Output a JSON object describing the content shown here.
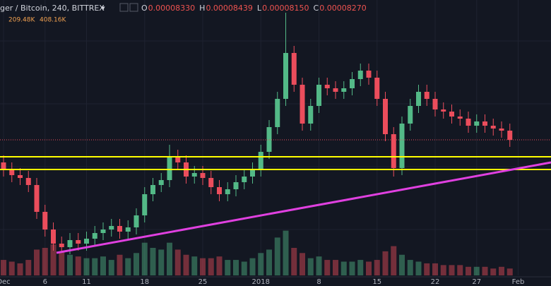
{
  "header": {
    "symbol": "ger / Bitcoin, 240, BITTREX",
    "ohlc": [
      {
        "key": "O",
        "value": "0.00008330"
      },
      {
        "key": "H",
        "value": "0.00008439"
      },
      {
        "key": "L",
        "value": "0.00008150"
      },
      {
        "key": "C",
        "value": "0.00008270"
      }
    ],
    "volume": [
      "209.48K",
      "408.16K"
    ]
  },
  "chart_data": {
    "type": "candlestick",
    "categories": [
      "Dec",
      null,
      null,
      null,
      null,
      "6",
      null,
      null,
      null,
      null,
      "11",
      null,
      null,
      null,
      null,
      null,
      null,
      "18",
      null,
      null,
      null,
      null,
      null,
      null,
      "25",
      null,
      null,
      null,
      null,
      null,
      null,
      "2018",
      null,
      null,
      null,
      null,
      null,
      null,
      "8",
      null,
      null,
      null,
      null,
      null,
      null,
      "15",
      null,
      null,
      null,
      null,
      null,
      null,
      "22",
      null,
      null,
      null,
      null,
      "27",
      null,
      null,
      null,
      null,
      "Feb"
    ],
    "open": [
      7.31e-05,
      7.01e-05,
      6.77e-05,
      6.65e-05,
      6.35e-05,
      5.21e-05,
      4.46e-05,
      3.86e-05,
      3.71e-05,
      4.01e-05,
      3.86e-05,
      4.07e-05,
      4.31e-05,
      4.46e-05,
      4.61e-05,
      4.37e-05,
      4.55e-05,
      5.06e-05,
      5.96e-05,
      6.35e-05,
      6.56e-05,
      7.55e-05,
      7.31e-05,
      6.71e-05,
      6.86e-05,
      6.65e-05,
      6.26e-05,
      5.96e-05,
      6.17e-05,
      6.47e-05,
      6.71e-05,
      7.01e-05,
      7.76e-05,
      8.81e-05,
      0.0001001,
      0.0001196,
      0.0001061,
      8.96e-05,
      9.71e-05,
      0.0001061,
      0.0001046,
      0.0001031,
      0.0001046,
      0.0001085,
      0.0001121,
      0.0001091,
      0.0001001,
      8.51e-05,
      7.07e-05,
      8.96e-05,
      9.71e-05,
      0.0001031,
      0.0001001,
      9.56e-05,
      9.47e-05,
      9.26e-05,
      9.17e-05,
      8.87e-05,
      9.05e-05,
      8.87e-05,
      8.75e-05,
      8.66e-05,
      null
    ],
    "high": [
      7.61e-05,
      7.31e-05,
      7.07e-05,
      6.95e-05,
      6.65e-05,
      5.51e-05,
      4.76e-05,
      4.16e-05,
      4.31e-05,
      4.31e-05,
      4.37e-05,
      4.61e-05,
      4.76e-05,
      4.91e-05,
      4.91e-05,
      4.85e-05,
      5.36e-05,
      6.26e-05,
      6.65e-05,
      6.86e-05,
      8.06e-05,
      7.85e-05,
      7.61e-05,
      7.16e-05,
      7.16e-05,
      6.95e-05,
      6.56e-05,
      6.47e-05,
      6.77e-05,
      7.01e-05,
      7.31e-05,
      8.06e-05,
      9.11e-05,
      0.0001031,
      0.0001367,
      0.0001226,
      0.0001091,
      0.0001001,
      0.0001091,
      0.0001091,
      0.0001076,
      0.0001076,
      0.0001115,
      0.0001151,
      0.0001151,
      0.0001121,
      0.0001031,
      8.81e-05,
      9.26e-05,
      0.0001001,
      0.0001061,
      0.0001061,
      0.0001031,
      9.86e-05,
      9.77e-05,
      9.56e-05,
      9.47e-05,
      9.35e-05,
      9.35e-05,
      9.17e-05,
      9.05e-05,
      8.96e-05,
      null
    ],
    "low": [
      6.71e-05,
      6.47e-05,
      6.35e-05,
      6.05e-05,
      4.91e-05,
      4.16e-05,
      3.56e-05,
      3.47e-05,
      3.41e-05,
      3.56e-05,
      3.56e-05,
      3.77e-05,
      4.01e-05,
      4.16e-05,
      4.07e-05,
      4.07e-05,
      4.25e-05,
      4.76e-05,
      5.66e-05,
      6.05e-05,
      6.26e-05,
      7.01e-05,
      6.41e-05,
      6.41e-05,
      6.35e-05,
      5.96e-05,
      5.66e-05,
      5.66e-05,
      5.87e-05,
      6.17e-05,
      6.41e-05,
      6.71e-05,
      7.46e-05,
      8.51e-05,
      9.71e-05,
      0.0001031,
      8.66e-05,
      8.66e-05,
      9.41e-05,
      0.0001016,
      0.0001001,
      0.0001001,
      0.0001016,
      0.0001055,
      0.0001061,
      9.71e-05,
      8.21e-05,
      6.71e-05,
      6.77e-05,
      8.66e-05,
      9.41e-05,
      9.71e-05,
      9.26e-05,
      9.17e-05,
      8.96e-05,
      8.87e-05,
      8.57e-05,
      8.57e-05,
      8.57e-05,
      8.45e-05,
      8.36e-05,
      7.97e-05,
      null
    ],
    "close": [
      7.01e-05,
      6.77e-05,
      6.65e-05,
      6.35e-05,
      5.21e-05,
      4.46e-05,
      3.86e-05,
      3.71e-05,
      4.01e-05,
      3.86e-05,
      4.07e-05,
      4.31e-05,
      4.46e-05,
      4.61e-05,
      4.37e-05,
      4.55e-05,
      5.06e-05,
      5.96e-05,
      6.35e-05,
      6.56e-05,
      7.55e-05,
      7.31e-05,
      6.71e-05,
      6.86e-05,
      6.65e-05,
      6.26e-05,
      5.96e-05,
      6.17e-05,
      6.47e-05,
      6.71e-05,
      7.01e-05,
      7.76e-05,
      8.81e-05,
      0.0001001,
      0.0001196,
      0.0001061,
      8.96e-05,
      9.71e-05,
      0.0001061,
      0.0001046,
      0.0001031,
      0.0001046,
      0.0001085,
      0.0001121,
      0.0001091,
      0.0001001,
      8.51e-05,
      7.07e-05,
      8.96e-05,
      9.71e-05,
      0.0001031,
      0.0001001,
      9.56e-05,
      9.47e-05,
      9.26e-05,
      9.17e-05,
      8.87e-05,
      9.05e-05,
      8.87e-05,
      8.75e-05,
      8.66e-05,
      8.27e-05,
      null
    ],
    "volume": [
      900000,
      800000,
      700000,
      900000,
      1500000,
      1600000,
      1800000,
      1400000,
      1200000,
      1100000,
      1000000,
      1000000,
      1100000,
      900000,
      1200000,
      1000000,
      1300000,
      1900000,
      1600000,
      1500000,
      1900000,
      1500000,
      1200000,
      1100000,
      1000000,
      1000000,
      1100000,
      900000,
      900000,
      800000,
      1000000,
      1300000,
      1500000,
      2200000,
      2600000,
      1600000,
      1300000,
      1000000,
      1100000,
      900000,
      900000,
      800000,
      800000,
      900000,
      800000,
      900000,
      1400000,
      1700000,
      1200000,
      900000,
      800000,
      700000,
      700000,
      600000,
      600000,
      600000,
      500000,
      500000,
      500000,
      400000,
      500000,
      400000,
      null
    ],
    "up_color": "#53b987",
    "down_color": "#eb4d5c",
    "ylim": [
      2.51e-05,
      0.0001421
    ],
    "y2lim": [
      0,
      16000000
    ],
    "hlines": [
      {
        "value": 7.55e-05,
        "color": "#ffff00"
      },
      {
        "value": 7.01e-05,
        "color": "#ffff00"
      }
    ],
    "grid": true
  }
}
